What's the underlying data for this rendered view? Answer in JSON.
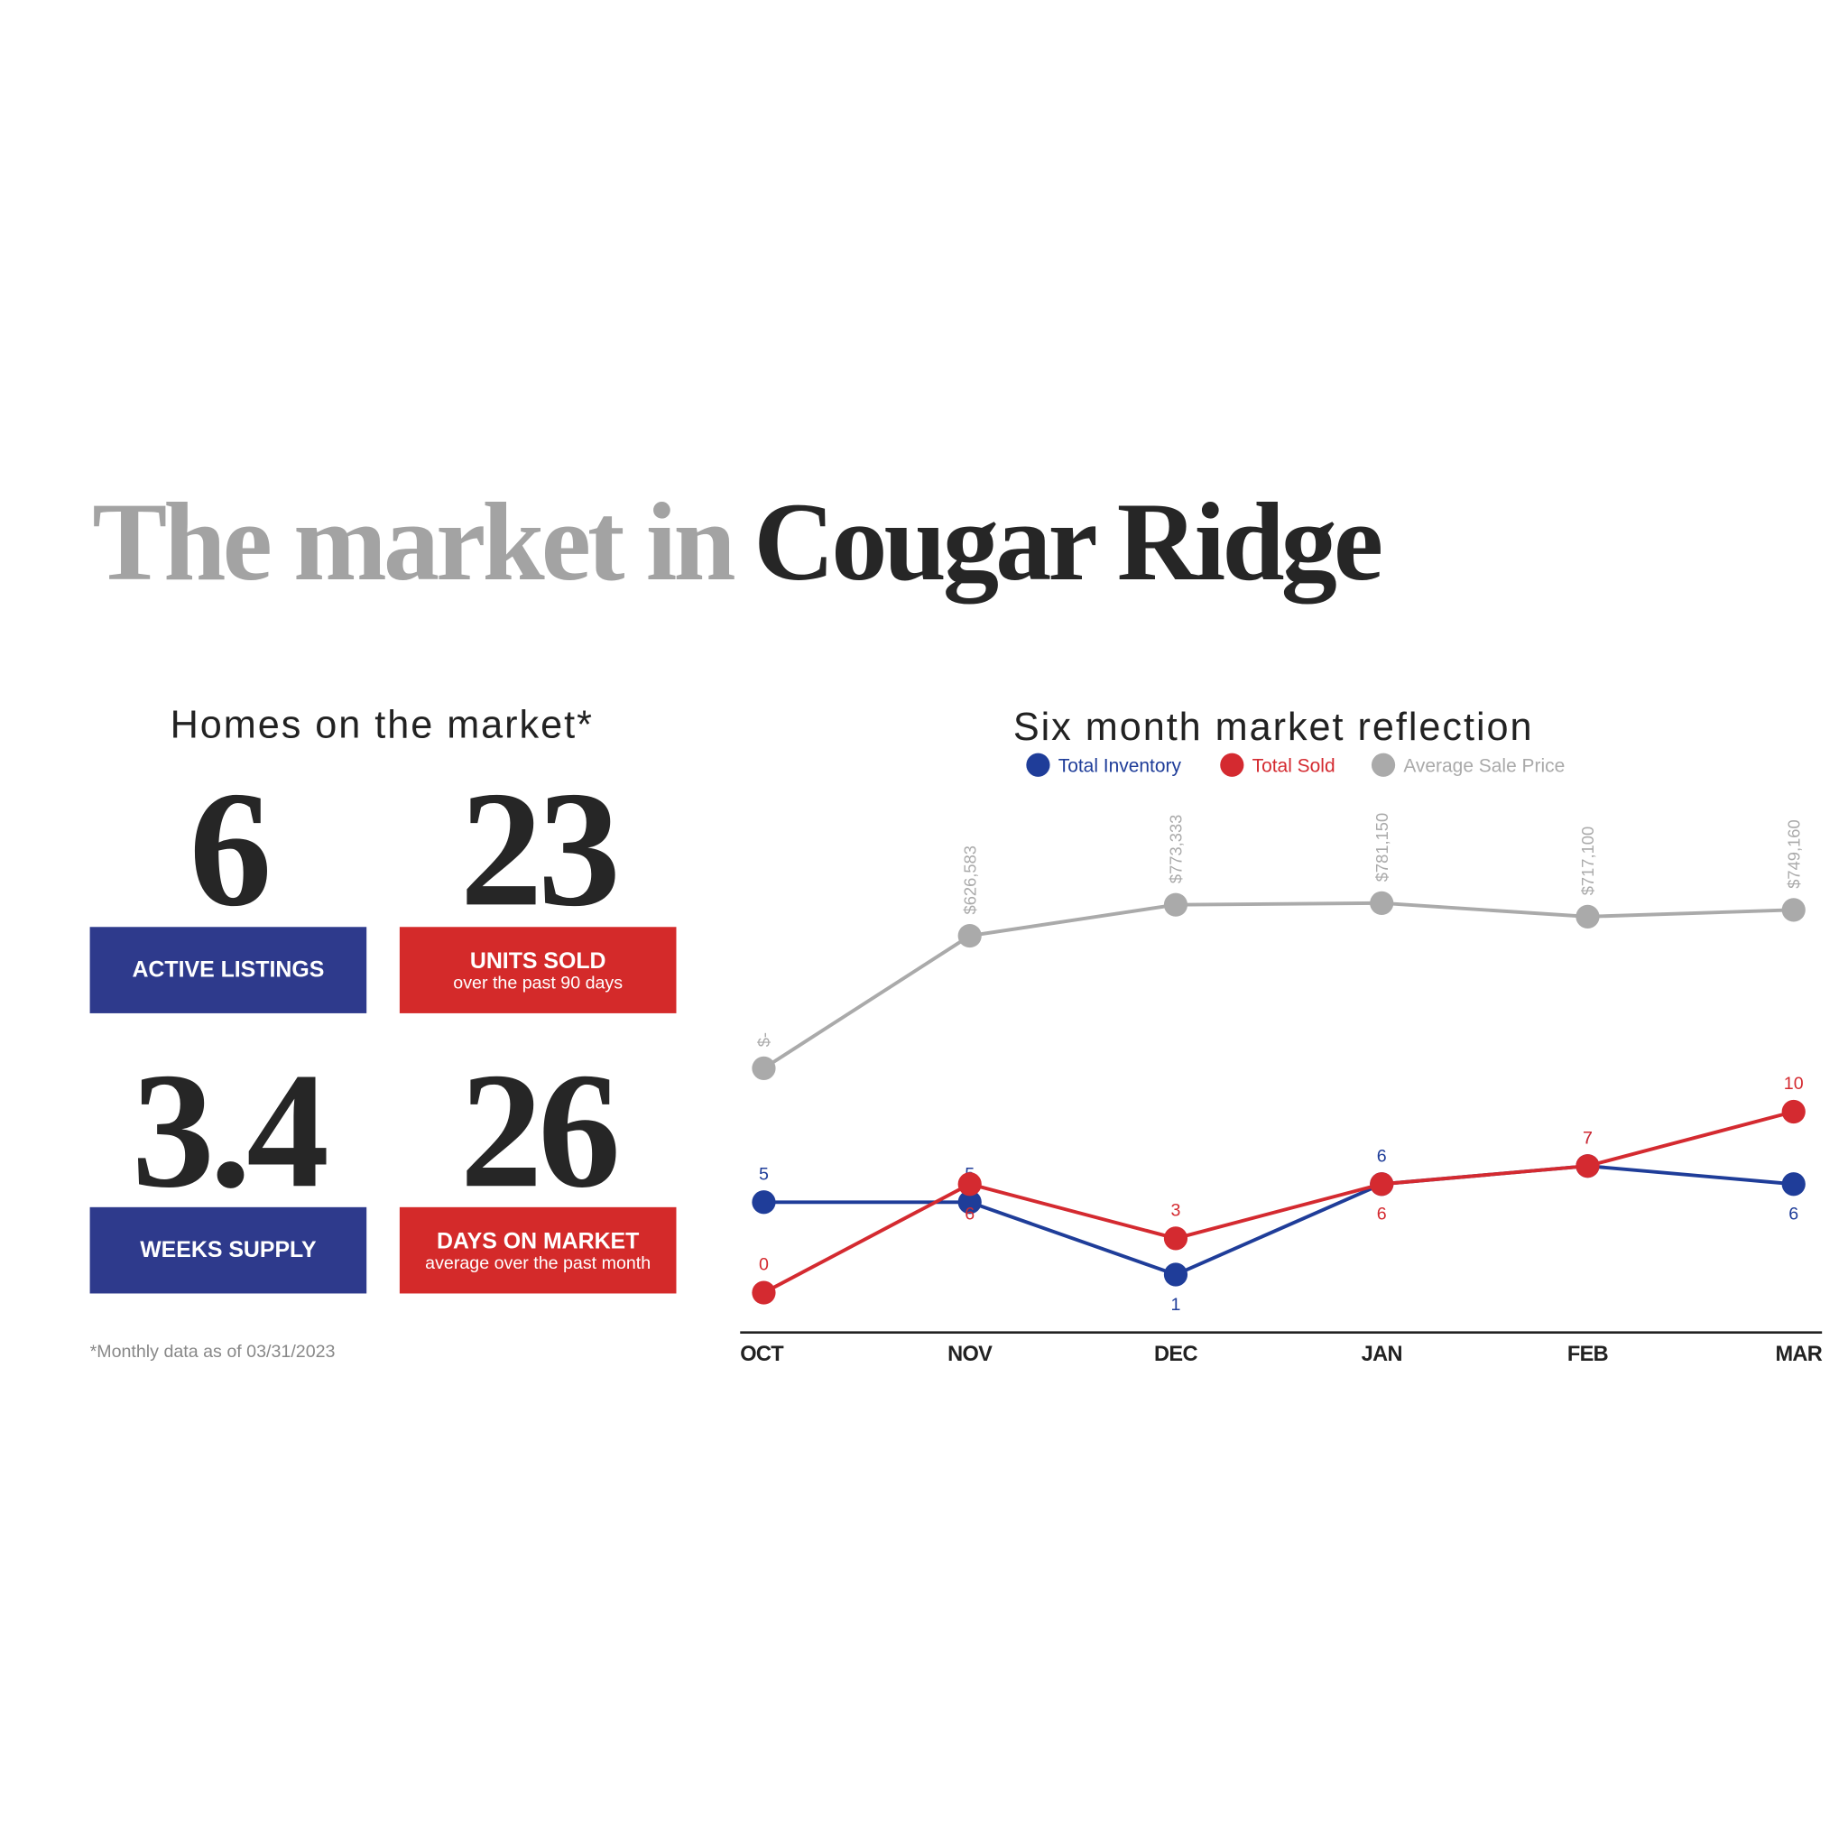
{
  "header": {
    "title_light": "The market in",
    "title_dark": "Cougar Ridge"
  },
  "stats": {
    "title": "Homes on the market*",
    "tiles": [
      {
        "value": 6,
        "label": "ACTIVE LISTINGS",
        "color": "#2e3a8c"
      },
      {
        "value": 23,
        "label": "UNITS SOLD",
        "sublabel": "over the past 90 days",
        "color": "#d42a2a"
      },
      {
        "value": 3.4,
        "label": "WEEKS SUPPLY",
        "color": "#2e3a8c"
      },
      {
        "value": 26,
        "label": "DAYS ON MARKET",
        "sublabel": "average over the past month",
        "color": "#d42a2a"
      }
    ],
    "footnote": "*Monthly data as of 03/31/2023"
  },
  "chart_data": {
    "type": "line",
    "title": "Six month market reflection",
    "categories": [
      "OCT",
      "NOV",
      "DEC",
      "JAN",
      "FEB",
      "MAR"
    ],
    "series": [
      {
        "name": "Total Inventory",
        "color": "#1f3d99",
        "values": [
          5,
          5,
          1,
          6,
          7,
          6
        ]
      },
      {
        "name": "Total Sold",
        "color": "#d42a30",
        "values": [
          0,
          6,
          3,
          6,
          7,
          10
        ]
      },
      {
        "name": "Average Sale Price",
        "color": "#aaaaaa",
        "axis": "y2",
        "values": [
          0,
          626583,
          773333,
          781150,
          717100,
          749160
        ],
        "value_labels": [
          "$-",
          "$626,583",
          "$773,333",
          "$781,150",
          "$717,100",
          "$749,160"
        ]
      }
    ],
    "ylim": [
      -2.2,
      27
    ],
    "y2lim": [
      -1250000,
      1250000
    ],
    "legend": "top"
  }
}
